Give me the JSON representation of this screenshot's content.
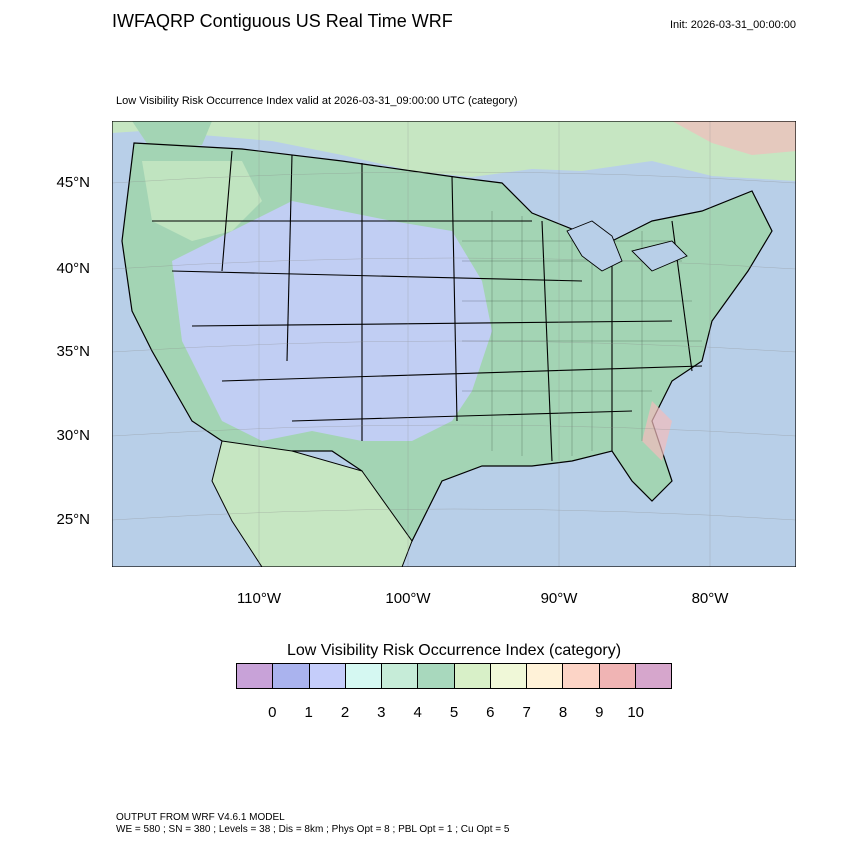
{
  "header": {
    "title": "IWFAQRP Contiguous US Real Time WRF",
    "init": "Init: 2026-03-31_00:00:00",
    "subtitle": "Low Visibility Risk Occurrence Index valid at 2026-03-31_09:00:00 UTC   (category)"
  },
  "map": {
    "lat_labels": [
      "45°N",
      "40°N",
      "35°N",
      "30°N",
      "25°N"
    ],
    "lon_labels": [
      "110°W",
      "100°W",
      "90°W",
      "80°W"
    ],
    "colors": {
      "ocean": "#b8cfe8",
      "terrain_low": "#c6e6c2",
      "terrain_green": "#a3d4b4",
      "terrain_blue": "#c4cdfa",
      "terrain_red": "#f2bcbc",
      "borders": "#000000"
    }
  },
  "legend": {
    "title": "Low Visibility Risk Occurrence Index  (category)",
    "labels": [
      "0",
      "1",
      "2",
      "3",
      "4",
      "5",
      "6",
      "7",
      "8",
      "9",
      "10"
    ],
    "colors": [
      "#c8a2d8",
      "#aab3ee",
      "#c5cdfa",
      "#d5f8f2",
      "#c6ecd8",
      "#a8d8bd",
      "#d8f0c8",
      "#f0f8d8",
      "#fff2d8",
      "#fcd4c6",
      "#f0b4b4",
      "#d6a6cc"
    ]
  },
  "footer": {
    "line1": "OUTPUT FROM WRF V4.6.1 MODEL",
    "line2": "WE = 580 ; SN = 380 ; Levels = 38 ; Dis = 8km ; Phys Opt = 8 ; PBL Opt = 1 ; Cu Opt = 5"
  }
}
